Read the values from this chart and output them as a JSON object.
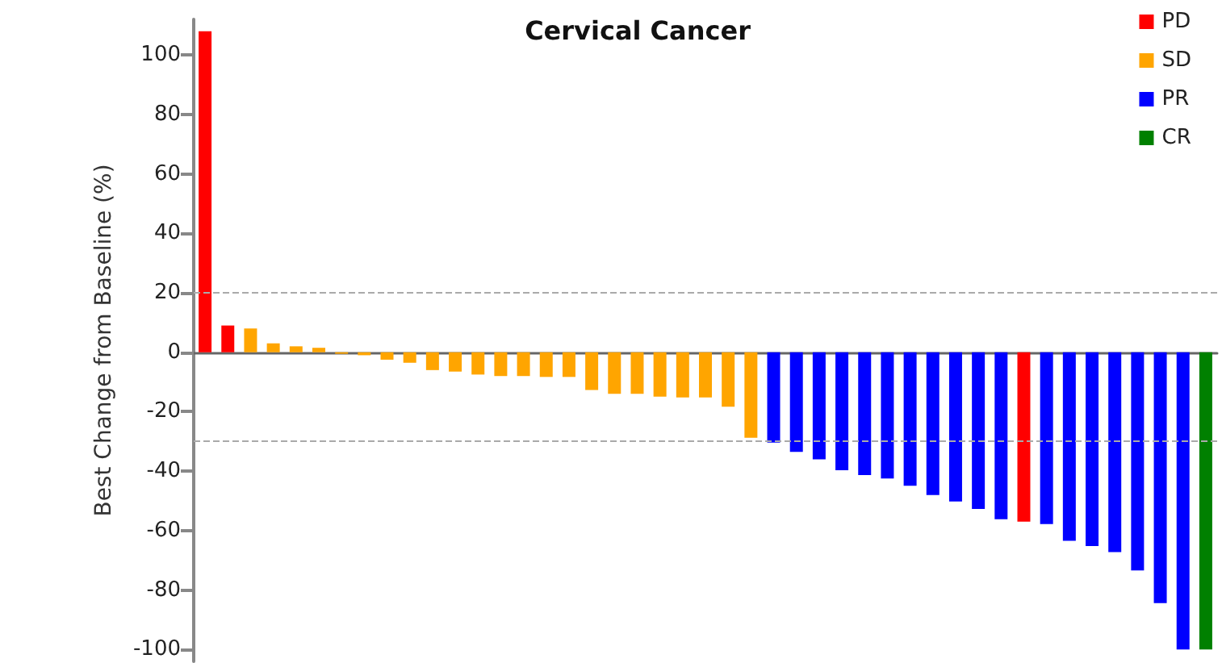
{
  "chart_data": {
    "type": "bar",
    "title": "Cervical Cancer",
    "ylabel": "Best Change from Baseline (%)",
    "categories": [
      null,
      null,
      null,
      null,
      null,
      null,
      null,
      null,
      null,
      null,
      null,
      null,
      null,
      null,
      null,
      null,
      null,
      null,
      null,
      null,
      null,
      null,
      null,
      null,
      null,
      null,
      null,
      null,
      null,
      null,
      null,
      null,
      null,
      null,
      null,
      null,
      null,
      null,
      null,
      null,
      null,
      null,
      null,
      null,
      null
    ],
    "stacked": true,
    "series": [
      {
        "name": "PD",
        "color": "#ff0000",
        "values": [
          108,
          9,
          null,
          null,
          null,
          null,
          null,
          null,
          null,
          null,
          null,
          null,
          null,
          null,
          null,
          null,
          null,
          null,
          null,
          null,
          null,
          null,
          null,
          null,
          null,
          null,
          null,
          null,
          null,
          null,
          null,
          null,
          null,
          null,
          null,
          null,
          -57,
          null,
          null,
          null,
          null,
          null,
          null,
          null,
          null
        ]
      },
      {
        "name": "SD",
        "color": "#ffa500",
        "values": [
          null,
          null,
          8,
          3,
          2,
          1.5,
          -0.5,
          -1,
          -2.5,
          -3.5,
          -6,
          -6.5,
          -7.5,
          -8,
          -8,
          -8.3,
          -8.3,
          -12.7,
          -14,
          -14,
          -14.9,
          -15.2,
          -15.2,
          -18.3,
          -28.8,
          null,
          null,
          null,
          null,
          null,
          null,
          null,
          null,
          null,
          null,
          null,
          null,
          null,
          null,
          null,
          null,
          null,
          null,
          null,
          null
        ]
      },
      {
        "name": "PR",
        "color": "#0000ff",
        "values": [
          null,
          null,
          null,
          null,
          null,
          null,
          null,
          null,
          null,
          null,
          null,
          null,
          null,
          null,
          null,
          null,
          null,
          null,
          null,
          null,
          null,
          null,
          null,
          null,
          null,
          -30.4,
          -33.5,
          -36,
          -39.7,
          -41.3,
          -42.5,
          -44.9,
          -48,
          -50.2,
          -52.7,
          -56.2,
          null,
          -57.8,
          -63.4,
          -65.2,
          -67.2,
          -73.4,
          -84.4,
          -100,
          null
        ]
      },
      {
        "name": "CR",
        "color": "#008000",
        "values": [
          null,
          null,
          null,
          null,
          null,
          null,
          null,
          null,
          null,
          null,
          null,
          null,
          null,
          null,
          null,
          null,
          null,
          null,
          null,
          null,
          null,
          null,
          null,
          null,
          null,
          null,
          null,
          null,
          null,
          null,
          null,
          null,
          null,
          null,
          null,
          null,
          null,
          null,
          null,
          null,
          null,
          null,
          null,
          null,
          -100
        ]
      }
    ],
    "ylim": [
      -104,
      112
    ],
    "yticks": [
      -100,
      -80,
      -60,
      -40,
      -20,
      0,
      20,
      40,
      60,
      80,
      100
    ],
    "ref_lines": [
      {
        "axis": "y",
        "value": 20,
        "color": "#aaaaaa",
        "line_style": "dashed"
      },
      {
        "axis": "y",
        "value": -30,
        "color": "#aaaaaa",
        "line_style": "dashed"
      }
    ],
    "tick_labels": "y",
    "grid": false,
    "legend": "top right"
  }
}
